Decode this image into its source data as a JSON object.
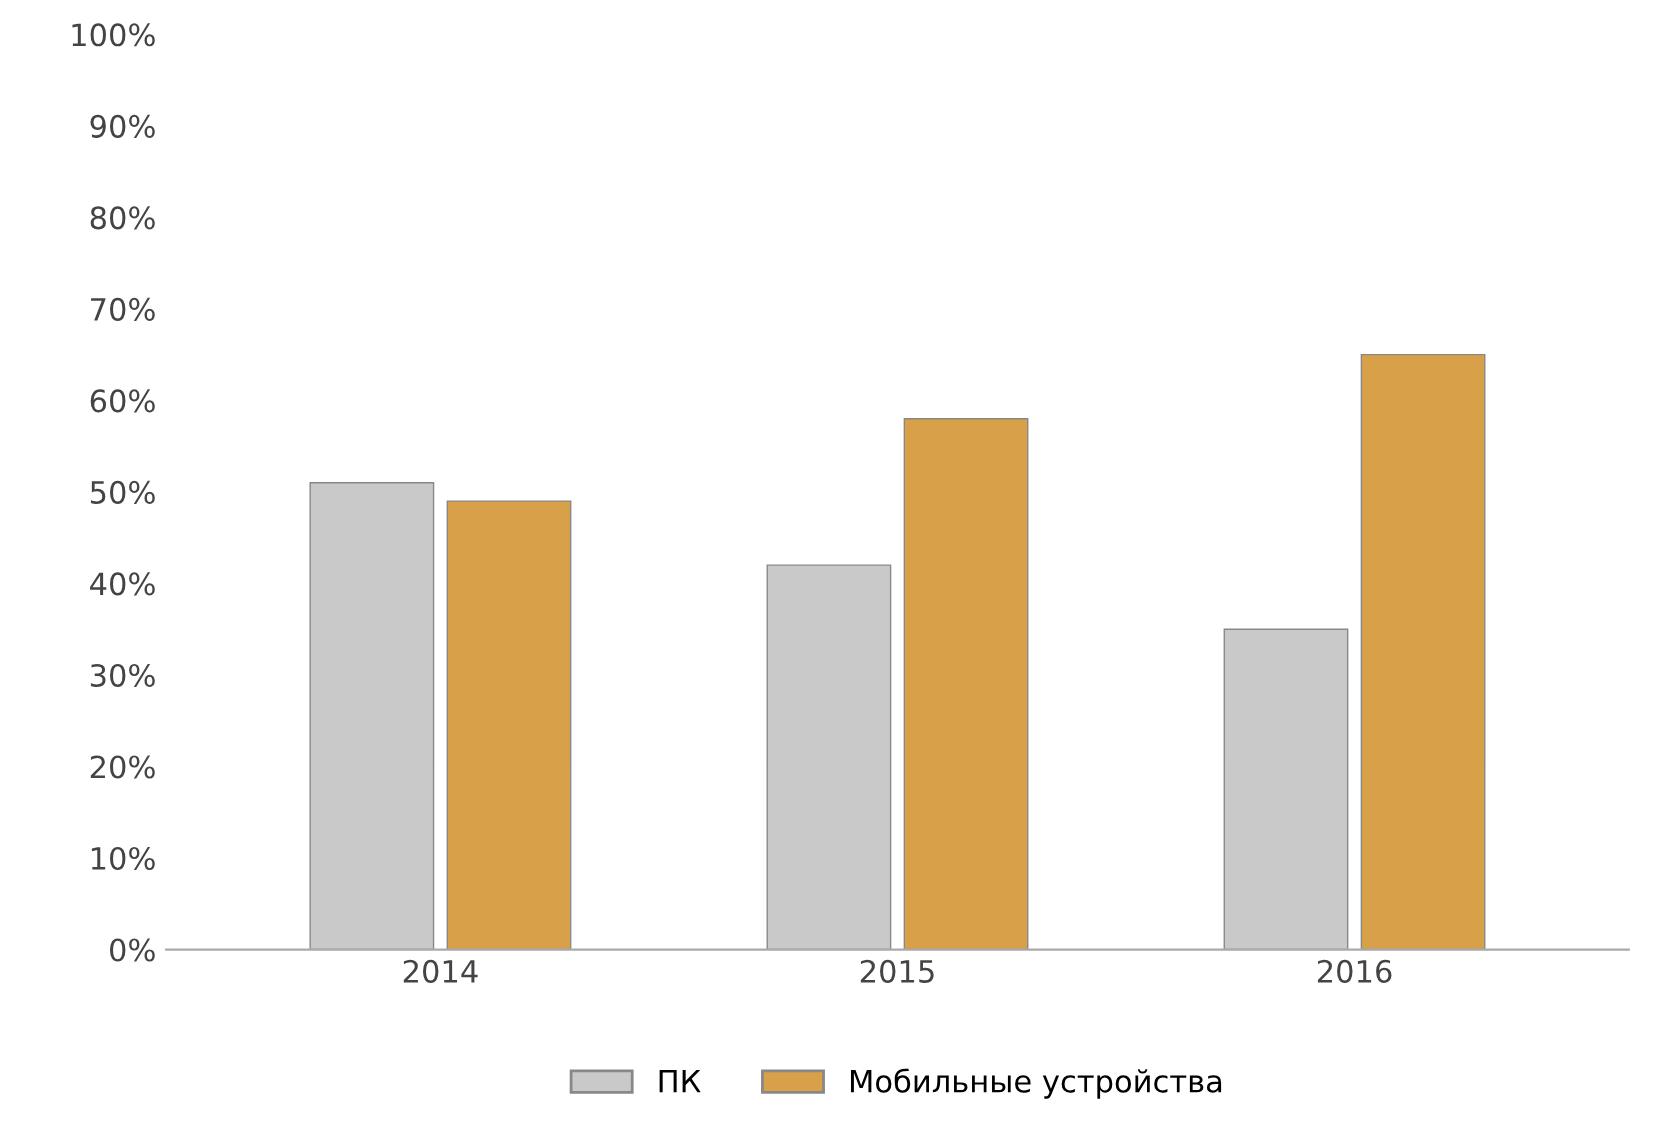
{
  "chart_data": {
    "type": "bar",
    "categories": [
      "2014",
      "2015",
      "2016"
    ],
    "series": [
      {
        "name": "ПК",
        "color": "#c9c9c9",
        "values": [
          51,
          42,
          35
        ]
      },
      {
        "name": "Мобильные устройства",
        "color": "#d9a04a",
        "values": [
          49,
          58,
          65
        ]
      }
    ],
    "ylim": [
      0,
      100
    ],
    "yticks": [
      {
        "value": 0,
        "label": "0%"
      },
      {
        "value": 10,
        "label": "10%"
      },
      {
        "value": 20,
        "label": "20%"
      },
      {
        "value": 30,
        "label": "30%"
      },
      {
        "value": 40,
        "label": "40%"
      },
      {
        "value": 50,
        "label": "50%"
      },
      {
        "value": 60,
        "label": "60%"
      },
      {
        "value": 70,
        "label": "70%"
      },
      {
        "value": 80,
        "label": "80%"
      },
      {
        "value": 90,
        "label": "90%"
      },
      {
        "value": 100,
        "label": "100%"
      }
    ],
    "grid": false,
    "legend": "bottom"
  }
}
